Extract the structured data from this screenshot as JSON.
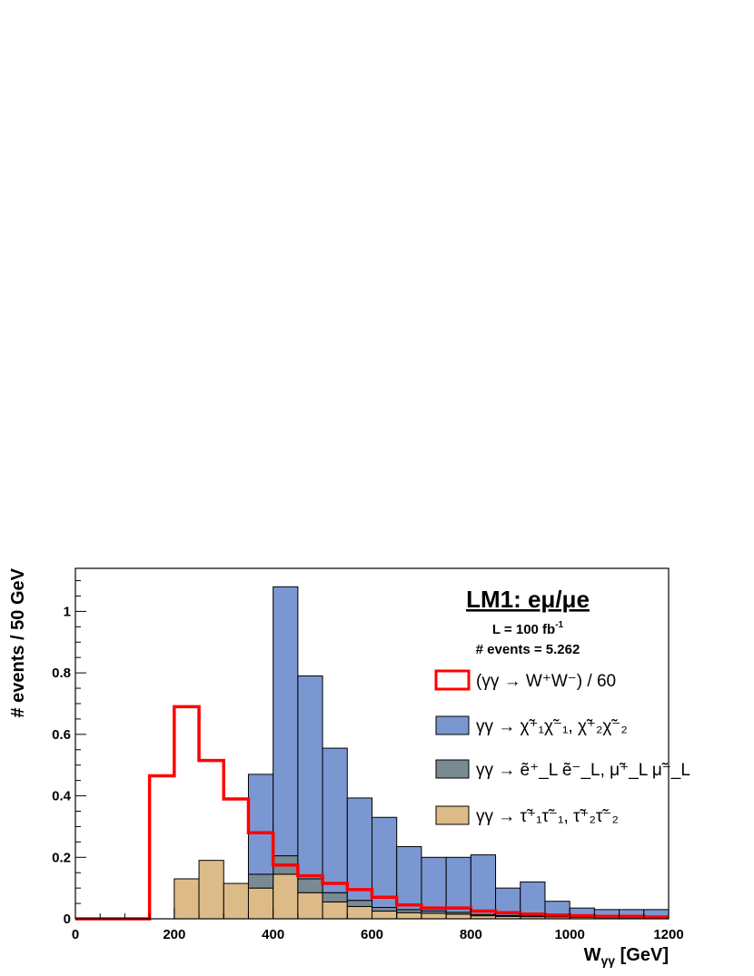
{
  "chart_data": {
    "type": "histogram",
    "title": "LM1: eμ/μe",
    "info_lines": [
      "L = 100 fb",
      "# events = 5.262"
    ],
    "xlabel": "W",
    "xlabel_sub": "γγ",
    "xlabel_unit": " [GeV]",
    "ylabel": "# events / 50 GeV",
    "xlim": [
      0,
      1200
    ],
    "ylim": [
      0,
      1.14
    ],
    "x_ticks": [
      0,
      200,
      400,
      600,
      800,
      1000,
      1200
    ],
    "y_ticks": [
      0,
      0.2,
      0.4,
      0.6,
      0.8,
      1
    ],
    "bin_width": 50,
    "bin_edges": [
      0,
      50,
      100,
      150,
      200,
      250,
      300,
      350,
      400,
      450,
      500,
      550,
      600,
      650,
      700,
      750,
      800,
      850,
      900,
      950,
      1000,
      1050,
      1100,
      1150,
      1200
    ],
    "stacked_series": [
      {
        "name": "γγ → τ̃⁺₁τ̃⁻₁, τ̃⁺₂τ̃⁻₂",
        "color": "#ddbb88",
        "values": [
          0,
          0,
          0,
          0,
          0.13,
          0.19,
          0.115,
          0.1,
          0.145,
          0.085,
          0.055,
          0.04,
          0.025,
          0.02,
          0.018,
          0.015,
          0.01,
          0.008,
          0.007,
          0.006,
          0.005,
          0.004,
          0.004,
          0.003
        ]
      },
      {
        "name": "γγ → ẽ⁺_L ẽ⁻_L, μ̃⁺_L μ̃⁻_L",
        "color": "#7a8a92",
        "values": [
          0,
          0,
          0,
          0,
          0,
          0,
          0,
          0.045,
          0.06,
          0.045,
          0.03,
          0.02,
          0.012,
          0.01,
          0.008,
          0.006,
          0.004,
          0.003,
          0.003,
          0.002,
          0.002,
          0.001,
          0.001,
          0.001
        ]
      },
      {
        "name": "γγ → χ̃⁺₁χ̃⁻₁, χ̃⁺₂χ̃⁻₂",
        "color": "#7b97d1",
        "values": [
          0,
          0,
          0,
          0,
          0,
          0,
          0,
          0.325,
          0.875,
          0.66,
          0.47,
          0.333,
          0.293,
          0.205,
          0.174,
          0.179,
          0.194,
          0.089,
          0.11,
          0.049,
          0.028,
          0.025,
          0.025,
          0.026
        ]
      }
    ],
    "overlay_series": {
      "name": "(γγ → W⁺W⁻) / 60",
      "color": "#ff0000",
      "values": [
        0,
        0,
        0,
        0.465,
        0.69,
        0.515,
        0.39,
        0.28,
        0.175,
        0.14,
        0.115,
        0.095,
        0.07,
        0.045,
        0.035,
        0.035,
        0.025,
        0.02,
        0.015,
        0.012,
        0.01,
        0.008,
        0.008,
        0.006
      ]
    },
    "legend_position": "top-right",
    "grid": false
  }
}
